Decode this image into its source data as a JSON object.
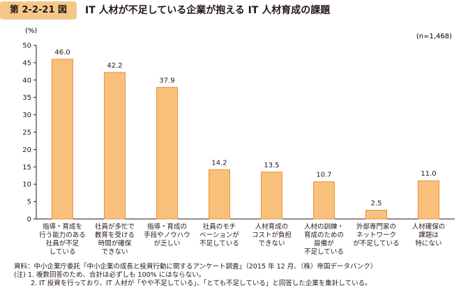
{
  "figure": {
    "number": "第 2-2-21 図",
    "title": "IT 人材が不足している企業が抱える IT 人材育成の課題",
    "accent_color": "#f6c78a"
  },
  "chart_data": {
    "type": "bar",
    "ylabel": "(%)",
    "n_label": "(n=1,468)",
    "ylim": [
      0,
      50
    ],
    "yticks": [
      0,
      5,
      10,
      15,
      20,
      25,
      30,
      35,
      40,
      45,
      50
    ],
    "grid": false,
    "bar_color": "#f9c07b",
    "bar_edge_color": "#e8923a",
    "categories": [
      [
        "指導・育成を",
        "行う能力のある",
        "社員が不足",
        "している"
      ],
      [
        "社員が多忙で",
        "教育を受ける",
        "時間が確保",
        "できない"
      ],
      [
        "指導・育成の",
        "手段やノウハウ",
        "が乏しい"
      ],
      [
        "社員のモチ",
        "ベーションが",
        "不足している"
      ],
      [
        "人材育成の",
        "コストが負担",
        "できない"
      ],
      [
        "人材の訓練・",
        "育成のための",
        "設備が",
        "不足している"
      ],
      [
        "外部専門家の",
        "ネットワーク",
        "が不足している"
      ],
      [
        "人材確保の",
        "課題は",
        "特にない"
      ]
    ],
    "values": [
      46.0,
      42.2,
      37.9,
      14.2,
      13.5,
      10.7,
      2.5,
      11.0
    ],
    "value_labels": [
      "46.0",
      "42.2",
      "37.9",
      "14.2",
      "13.5",
      "10.7",
      "2.5",
      "11.0"
    ]
  },
  "notes": {
    "source": "資料：中小企業庁委託「中小企業の成長と投資行動に関するアンケート調査」（2015 年 12 月、（株）帝国データバンク）",
    "note1": "(注) 1. 複数回答のため、合計は必ずしも 100% にはならない。",
    "note2": "2. IT 投資を行っており、IT 人材が「やや不足している」、「とても不足している」と回答した企業を集計している。"
  }
}
